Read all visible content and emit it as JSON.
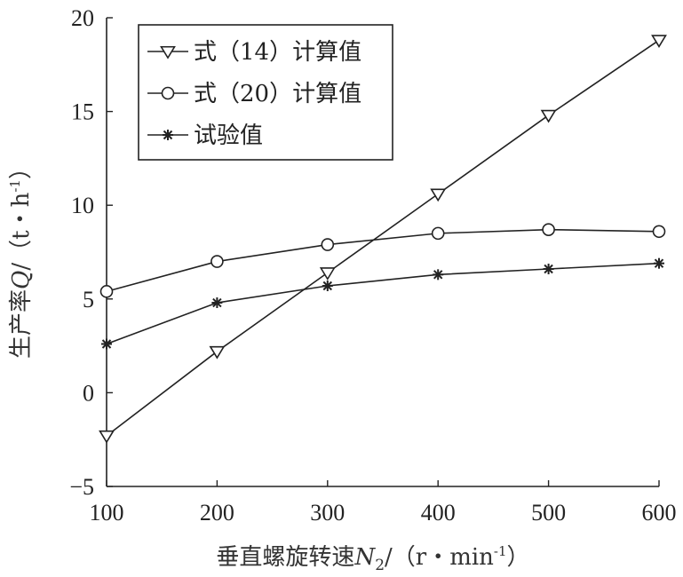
{
  "chart_data": {
    "type": "line",
    "x": [
      100,
      200,
      300,
      400,
      500,
      600
    ],
    "xlim": [
      100,
      600
    ],
    "ylim": [
      -5,
      20
    ],
    "xticks": [
      "100",
      "200",
      "300",
      "400",
      "500",
      "600"
    ],
    "yticks": [
      "−5",
      "0",
      "5",
      "10",
      "15",
      "20"
    ],
    "xlabel_main": "垂直螺旋转速",
    "xlabel_var": "N",
    "xlabel_sub": "2",
    "xlabel_unit": "/（r・min",
    "xlabel_sup": "-1",
    "xlabel_close": "）",
    "ylabel_main": "生产率",
    "ylabel_var": "Q",
    "ylabel_unit": "/（t・h",
    "ylabel_sup": "-1",
    "ylabel_close": "）",
    "grid": false,
    "legend_position": "top-left",
    "series": [
      {
        "name": "式（14）计算值",
        "marker": "triangle-down",
        "values": [
          -2.3,
          2.2,
          6.4,
          10.6,
          14.8,
          18.8
        ]
      },
      {
        "name": "式（20）计算值",
        "marker": "circle",
        "values": [
          5.4,
          7.0,
          7.9,
          8.5,
          8.7,
          8.6
        ]
      },
      {
        "name": "试验值",
        "marker": "star",
        "values": [
          2.6,
          4.8,
          5.7,
          6.3,
          6.6,
          6.9
        ]
      }
    ]
  }
}
